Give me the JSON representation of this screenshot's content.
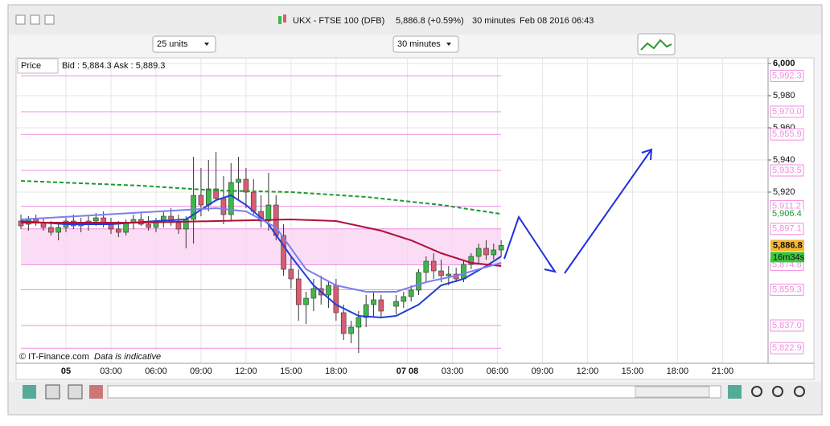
{
  "header": {
    "window_title": "UKX - FTSE 100 (DFB)",
    "price_change": "5,886.8 (+0.59%)",
    "interval": "30 minutes",
    "timestamp": "Feb 08 2016 06:43"
  },
  "toolbar": {
    "units": "25 units",
    "interval": "30 minutes"
  },
  "legend": {
    "label": "Price",
    "quote": "Bid : 5,884.3 Ask : 5,889.3"
  },
  "footer": {
    "source": "© IT-Finance.com",
    "note": "Data is indicative"
  },
  "chart_data": {
    "type": "candlestick",
    "x": [
      -6,
      -5,
      -4,
      -3,
      -2,
      -1,
      0,
      1,
      2,
      3,
      4,
      5,
      6,
      7,
      8,
      9,
      10,
      11,
      12,
      13,
      14,
      15,
      16,
      17,
      18,
      19,
      20,
      21,
      22,
      23,
      24,
      25,
      26,
      27,
      28,
      29,
      30,
      31,
      32,
      33,
      34,
      35,
      36,
      37,
      38,
      39,
      40,
      41,
      42,
      44,
      45,
      46,
      47,
      48,
      49,
      50,
      51,
      52,
      53,
      54,
      55,
      56,
      57,
      58
    ],
    "open": [
      5902,
      5900,
      5903,
      5901,
      5898,
      5895,
      5898,
      5902,
      5899,
      5900,
      5902,
      5904,
      5900,
      5897,
      5895,
      5901,
      5903,
      5900,
      5898,
      5902,
      5905,
      5901,
      5897,
      5903,
      5918,
      5912,
      5922,
      5916,
      5906,
      5926,
      5928,
      5920,
      5908,
      5902,
      5912,
      5893,
      5872,
      5866,
      5850,
      5854,
      5860,
      5856,
      5862,
      5845,
      5832,
      5836,
      5842,
      5850,
      5853,
      5849,
      5852,
      5855,
      5859,
      5870,
      5877,
      5871,
      5868,
      5869,
      5866,
      5875,
      5880,
      5885,
      5881,
      5884
    ],
    "high": [
      5906,
      5905,
      5906,
      5904,
      5902,
      5900,
      5904,
      5906,
      5904,
      5905,
      5907,
      5908,
      5904,
      5902,
      5903,
      5906,
      5908,
      5905,
      5904,
      5908,
      5910,
      5906,
      5905,
      5942,
      5935,
      5940,
      5945,
      5930,
      5938,
      5942,
      5935,
      5928,
      5918,
      5932,
      5918,
      5900,
      5880,
      5872,
      5858,
      5866,
      5868,
      5865,
      5866,
      5850,
      5840,
      5846,
      5856,
      5858,
      5856,
      5856,
      5858,
      5862,
      5872,
      5880,
      5882,
      5878,
      5874,
      5873,
      5878,
      5882,
      5888,
      5890,
      5888,
      5890
    ],
    "low": [
      5897,
      5896,
      5899,
      5896,
      5893,
      5890,
      5895,
      5897,
      5895,
      5896,
      5899,
      5898,
      5894,
      5892,
      5893,
      5897,
      5899,
      5896,
      5895,
      5898,
      5899,
      5894,
      5885,
      5888,
      5905,
      5908,
      5915,
      5900,
      5902,
      5915,
      5910,
      5905,
      5898,
      5896,
      5890,
      5868,
      5860,
      5840,
      5838,
      5846,
      5850,
      5848,
      5840,
      5828,
      5826,
      5820,
      5836,
      5842,
      5842,
      5844,
      5848,
      5852,
      5856,
      5864,
      5866,
      5864,
      5862,
      5864,
      5864,
      5872,
      5876,
      5878,
      5878,
      5880
    ],
    "close": [
      5899,
      5903,
      5901,
      5898,
      5895,
      5898,
      5902,
      5899,
      5900,
      5902,
      5904,
      5900,
      5897,
      5895,
      5901,
      5903,
      5900,
      5898,
      5902,
      5905,
      5901,
      5897,
      5903,
      5918,
      5912,
      5922,
      5916,
      5906,
      5926,
      5928,
      5920,
      5908,
      5902,
      5912,
      5893,
      5872,
      5866,
      5850,
      5854,
      5860,
      5856,
      5862,
      5845,
      5832,
      5836,
      5842,
      5850,
      5853,
      5846,
      5852,
      5855,
      5859,
      5870,
      5877,
      5871,
      5868,
      5869,
      5866,
      5875,
      5880,
      5885,
      5881,
      5884,
      5886.8
    ],
    "up_color": "#3db84a",
    "down_color": "#d95c72",
    "lines": [
      {
        "color": "#1f3fd6",
        "dash": false,
        "x": [
          -6,
          0,
          6,
          12,
          16,
          20,
          22,
          24,
          27,
          30,
          33,
          36,
          39,
          42,
          44,
          47,
          50,
          53,
          56,
          58
        ],
        "values": [
          5902,
          5900,
          5900,
          5902,
          5903,
          5915,
          5918,
          5912,
          5900,
          5880,
          5862,
          5850,
          5843,
          5842,
          5843,
          5850,
          5862,
          5866,
          5874,
          5880
        ]
      },
      {
        "color": "#b0103a",
        "dash": false,
        "x": [
          -6,
          10,
          20,
          30,
          36,
          42,
          46,
          50,
          54,
          58
        ],
        "values": [
          5901,
          5901,
          5902,
          5903,
          5902,
          5896,
          5890,
          5882,
          5876,
          5874
        ]
      },
      {
        "color": "#1c9a2c",
        "dash": true,
        "x": [
          -6,
          10,
          20,
          30,
          40,
          50,
          58
        ],
        "values": [
          5927,
          5924,
          5921,
          5920,
          5917,
          5912,
          5906.4
        ]
      },
      {
        "color": "#7b7ef0",
        "dash": false,
        "x": [
          -6,
          20,
          24,
          28,
          32,
          36,
          40,
          44,
          48,
          52,
          58
        ],
        "values": [
          5903,
          5910,
          5908,
          5898,
          5872,
          5862,
          5858,
          5858,
          5864,
          5868,
          5876
        ]
      }
    ],
    "levels": [
      {
        "value": 5992.3,
        "label": "5,992.3"
      },
      {
        "value": 5970.0,
        "label": "5,970.0"
      },
      {
        "value": 5955.9,
        "label": "5,955.9"
      },
      {
        "value": 5933.5,
        "label": "5,933.5"
      },
      {
        "value": 5911.2,
        "label": "5,911.2"
      },
      {
        "value": 5897.1,
        "label": "5,897.1"
      },
      {
        "value": 5874.8,
        "label": "5,874.8"
      },
      {
        "value": 5859.3,
        "label": "5,859.3"
      },
      {
        "value": 5837.0,
        "label": "5,837.0"
      },
      {
        "value": 5822.9,
        "label": "5,822.9"
      }
    ],
    "level_color": "#f08ce0",
    "band": [
      5874.8,
      5897.1
    ],
    "ma_label": {
      "value": 5906.4,
      "label": "5,906.4"
    },
    "last_price": {
      "value": 5886.8,
      "label": "5,886.8"
    },
    "countdown": "16m34s",
    "xlim": [
      -6.645,
      93.57
    ],
    "ylim": [
      5813.5,
      6003
    ],
    "xticks": [
      {
        "value": 0,
        "label": "05"
      },
      {
        "value": 6,
        "label": "03:00"
      },
      {
        "value": 12,
        "label": "06:00"
      },
      {
        "value": 18,
        "label": "09:00"
      },
      {
        "value": 24,
        "label": "12:00"
      },
      {
        "value": 30,
        "label": "15:00"
      },
      {
        "value": 36,
        "label": "18:00"
      },
      {
        "value": 45.5,
        "label": "07 08"
      },
      {
        "value": 51.5,
        "label": "03:00"
      },
      {
        "value": 57.5,
        "label": "06:00"
      },
      {
        "value": 63.5,
        "label": "09:00"
      },
      {
        "value": 69.5,
        "label": "12:00"
      },
      {
        "value": 75.5,
        "label": "15:00"
      },
      {
        "value": 81.5,
        "label": "18:00"
      },
      {
        "value": 87.5,
        "label": "21:00"
      }
    ],
    "yticks": [
      {
        "value": 6000,
        "label": "6,000"
      },
      {
        "value": 5980,
        "label": "5,980"
      },
      {
        "value": 5960,
        "label": "5,960"
      },
      {
        "value": 5940,
        "label": "5,940"
      },
      {
        "value": 5920,
        "label": "5,920"
      }
    ],
    "grid": true
  }
}
